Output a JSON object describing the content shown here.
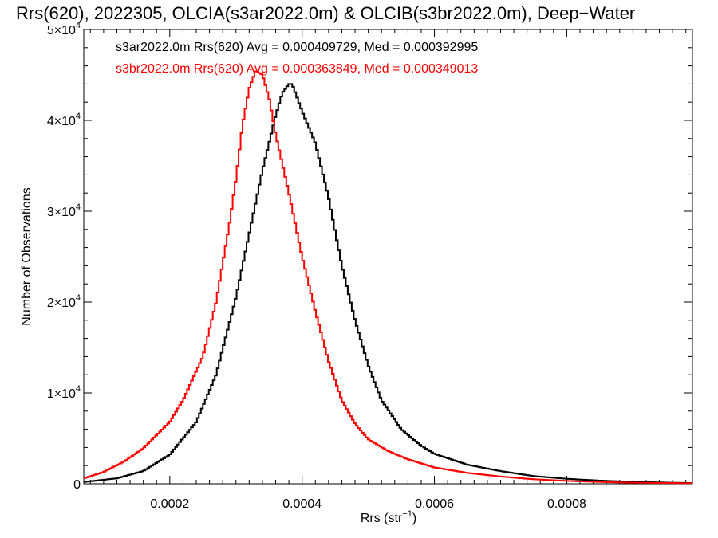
{
  "chart_data": {
    "type": "histogram-step",
    "title": "Rrs(620), 2022305, OLCIA(s3ar2022.0m) & OLCIB(s3br2022.0m), Deep−Water",
    "xlabel": "Rrs (str",
    "xlabel_sup": "−1",
    "xlabel_tail": ")",
    "ylabel": "Number of Observations",
    "xlim": [
      7e-05,
      0.00099
    ],
    "ylim": [
      0,
      50000
    ],
    "x_ticks": [
      {
        "value": 0.0002,
        "label": "0.0002"
      },
      {
        "value": 0.0004,
        "label": "0.0004"
      },
      {
        "value": 0.0006,
        "label": "0.0006"
      },
      {
        "value": 0.0008,
        "label": "0.0008"
      }
    ],
    "y_ticks": [
      {
        "value": 0,
        "mant": "0",
        "exp": ""
      },
      {
        "value": 10000,
        "mant": "1×10",
        "exp": "4"
      },
      {
        "value": 20000,
        "mant": "2×10",
        "exp": "4"
      },
      {
        "value": 30000,
        "mant": "3×10",
        "exp": "4"
      },
      {
        "value": 40000,
        "mant": "4×10",
        "exp": "4"
      },
      {
        "value": 50000,
        "mant": "5×10",
        "exp": "4"
      }
    ],
    "grid": false,
    "legend_position": "top-left",
    "series": [
      {
        "name": "s3ar2022.0m Rrs(620) Avg = 0.000409729, Med = 0.000392995",
        "color": "#000000",
        "points": [
          [
            7e-05,
            200
          ],
          [
            0.00012,
            600
          ],
          [
            0.00016,
            1400
          ],
          [
            0.0002,
            3200
          ],
          [
            0.00024,
            6800
          ],
          [
            0.00027,
            12000
          ],
          [
            0.0003,
            20500
          ],
          [
            0.00032,
            27500
          ],
          [
            0.00034,
            34500
          ],
          [
            0.00036,
            40500
          ],
          [
            0.00037,
            43000
          ],
          [
            0.00038,
            44000
          ],
          [
            0.000385,
            44000
          ],
          [
            0.00039,
            43000
          ],
          [
            0.0004,
            41000
          ],
          [
            0.00042,
            37500
          ],
          [
            0.00044,
            31500
          ],
          [
            0.00046,
            24000
          ],
          [
            0.00048,
            18000
          ],
          [
            0.0005,
            13000
          ],
          [
            0.00052,
            9200
          ],
          [
            0.00055,
            6000
          ],
          [
            0.00058,
            4200
          ],
          [
            0.0006,
            3300
          ],
          [
            0.00065,
            2100
          ],
          [
            0.0007,
            1400
          ],
          [
            0.00075,
            850
          ],
          [
            0.0008,
            550
          ],
          [
            0.00085,
            350
          ],
          [
            0.0009,
            220
          ],
          [
            0.00095,
            130
          ],
          [
            0.00099,
            80
          ]
        ]
      },
      {
        "name": "s3br2022.0m Rrs(620) Avg = 0.000363849, Med = 0.000349013",
        "color": "#ff0000",
        "points": [
          [
            7e-05,
            600
          ],
          [
            0.0001,
            1300
          ],
          [
            0.00013,
            2400
          ],
          [
            0.00016,
            3900
          ],
          [
            0.0002,
            6800
          ],
          [
            0.00022,
            9200
          ],
          [
            0.00025,
            14000
          ],
          [
            0.00027,
            20000
          ],
          [
            0.00029,
            28500
          ],
          [
            0.0003,
            33500
          ],
          [
            0.00031,
            39500
          ],
          [
            0.00032,
            43500
          ],
          [
            0.00033,
            45500
          ],
          [
            0.00034,
            45000
          ],
          [
            0.00035,
            42500
          ],
          [
            0.00036,
            38500
          ],
          [
            0.00038,
            32000
          ],
          [
            0.0004,
            25000
          ],
          [
            0.00042,
            19000
          ],
          [
            0.00044,
            13500
          ],
          [
            0.00046,
            9200
          ],
          [
            0.00048,
            6600
          ],
          [
            0.0005,
            4900
          ],
          [
            0.00053,
            3600
          ],
          [
            0.00056,
            2700
          ],
          [
            0.0006,
            1800
          ],
          [
            0.00065,
            1200
          ],
          [
            0.0007,
            800
          ],
          [
            0.00075,
            500
          ],
          [
            0.0008,
            320
          ],
          [
            0.00085,
            200
          ],
          [
            0.0009,
            120
          ],
          [
            0.00099,
            60
          ]
        ]
      }
    ]
  }
}
